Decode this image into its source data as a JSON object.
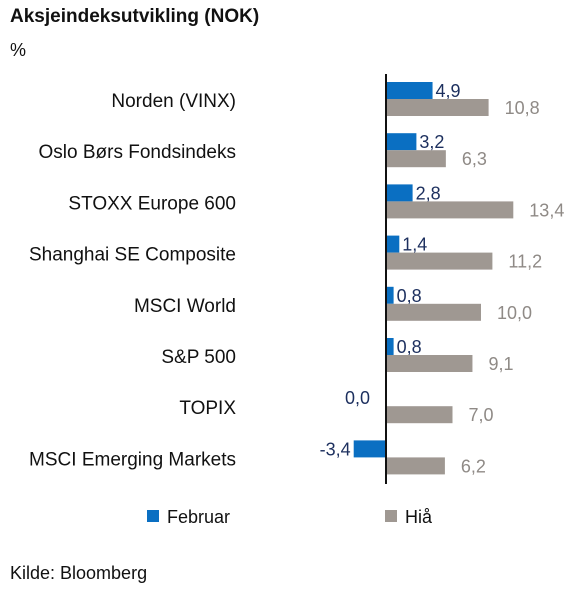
{
  "source": "Kilde: Bloomberg",
  "chart_data": {
    "type": "bar",
    "orientation": "horizontal",
    "title": "Aksjeindeksutvikling (NOK)",
    "unit": "%",
    "categories": [
      "Norden (VINX)",
      "Oslo Børs Fondsindeks",
      "STOXX Europe 600",
      "Shanghai SE Composite",
      "MSCI World",
      "S&P 500",
      "TOPIX",
      "MSCI Emerging Markets"
    ],
    "series": [
      {
        "name": "Februar",
        "color": "#0a6fc2",
        "label_color": "#1c2f5e",
        "values": [
          4.9,
          3.2,
          2.8,
          1.4,
          0.8,
          0.8,
          0.0,
          -3.4
        ],
        "labels": [
          "4,9",
          "3,2",
          "2,8",
          "1,4",
          "0,8",
          "0,8",
          "0,0",
          "-3,4"
        ]
      },
      {
        "name": "Hiå",
        "color": "#9f9892",
        "label_color": "#8f8a86",
        "values": [
          10.8,
          6.3,
          13.4,
          11.2,
          10.0,
          9.1,
          7.0,
          6.2
        ],
        "labels": [
          "10,8",
          "6,3",
          "13,4",
          "11,2",
          "10,0",
          "9,1",
          "7,0",
          "6,2"
        ]
      }
    ],
    "legend_position": "bottom",
    "grid": false
  }
}
